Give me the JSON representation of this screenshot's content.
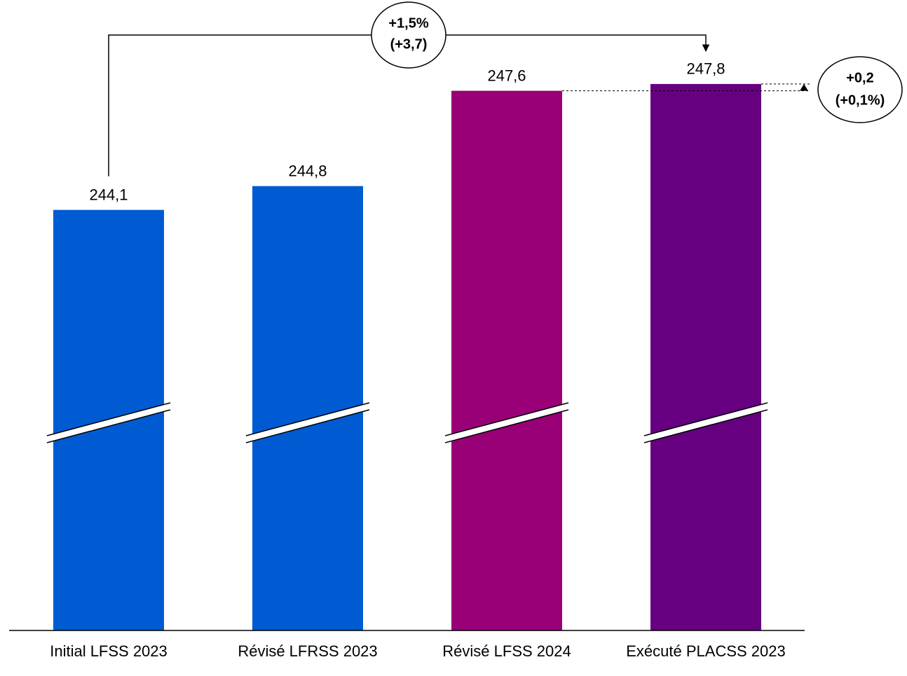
{
  "chart_data": {
    "type": "bar",
    "categories": [
      "Initial LFSS 2023",
      "Révisé LFRSS 2023",
      "Révisé LFSS 2024",
      "Exécuté PLACSS 2023"
    ],
    "values": [
      244.1,
      244.8,
      247.6,
      247.8
    ],
    "value_labels": [
      "244,1",
      "244,8",
      "247,6",
      "247,8"
    ],
    "colors": [
      "#005bd3",
      "#005bd3",
      "#990077",
      "#660080"
    ],
    "ylim": [
      238,
      250
    ],
    "axis_break": true,
    "annotations": [
      [
        "+1,5%",
        "(+3,7)"
      ],
      [
        "+0,2",
        "(+0,1%)"
      ]
    ]
  }
}
